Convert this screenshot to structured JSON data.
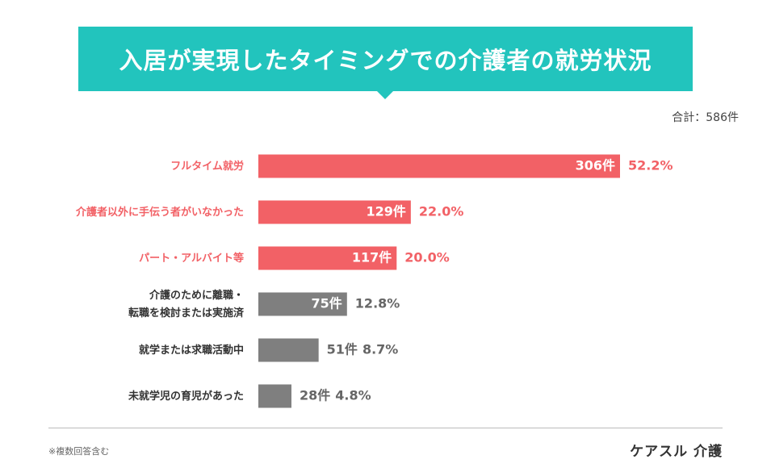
{
  "title": "入居が実現したタイミングでの介護者の就労状況",
  "total": "合計：586件",
  "footnote": "※複数回答含む",
  "brand": "ケアスル 介護",
  "colors": {
    "accent": "#22c4bd",
    "highlight": "#f26166",
    "neutral": "#7f7f7f",
    "neutral_text": "#666666"
  },
  "chart_data": {
    "type": "bar",
    "orientation": "horizontal",
    "unit": "件",
    "categories": [
      [
        "フルタイム就労"
      ],
      [
        "介護者以外に手伝う者がいなかった"
      ],
      [
        "パート・アルバイト等"
      ],
      [
        "介護のために離職・",
        "転職を検討または実施済"
      ],
      [
        "就学または求職活動中"
      ],
      [
        "未就学児の育児があった"
      ]
    ],
    "values": [
      306,
      129,
      117,
      75,
      51,
      28
    ],
    "count_labels": [
      "306件",
      "129件",
      "117件",
      "75件",
      "51件",
      "28件"
    ],
    "percent_labels": [
      "52.2%",
      "22.0%",
      "20.0%",
      "12.8%",
      "8.7%",
      "4.8%"
    ],
    "highlighted": [
      true,
      true,
      true,
      false,
      false,
      false
    ],
    "count_label_inside": [
      true,
      true,
      true,
      true,
      false,
      false
    ],
    "xlim": [
      0,
      306
    ]
  }
}
